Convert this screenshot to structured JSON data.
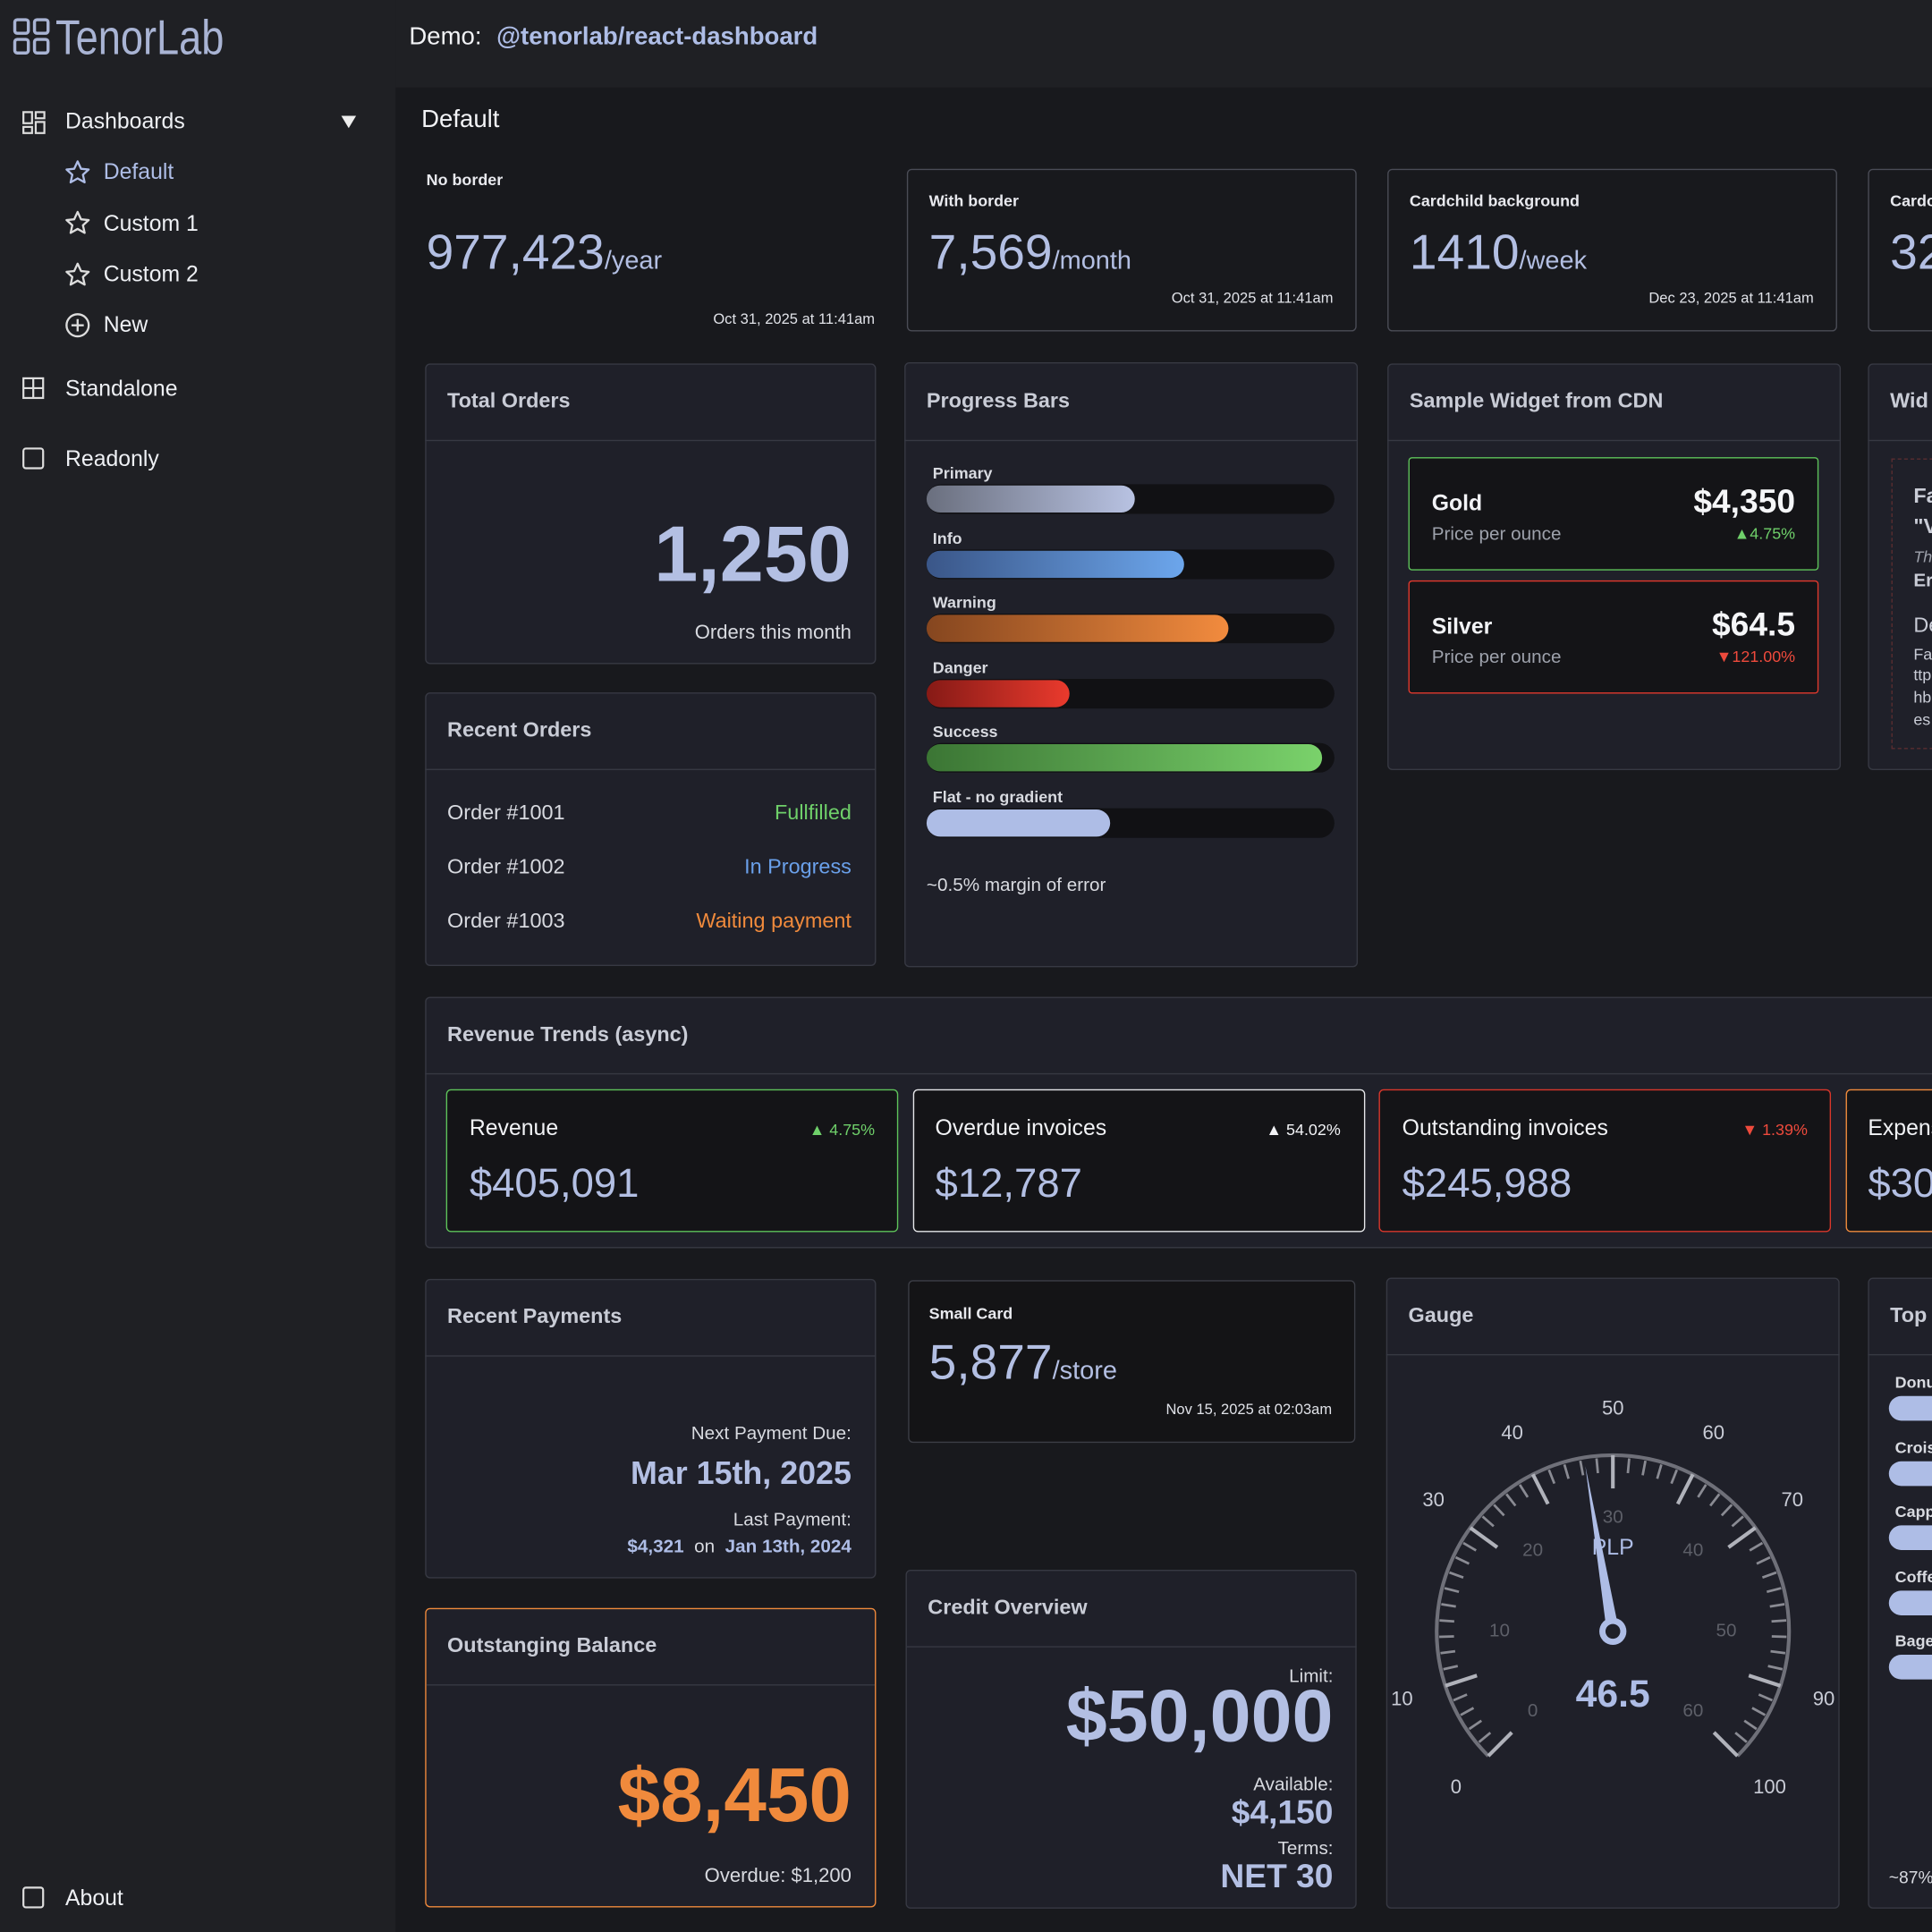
{
  "header": {
    "logo": "TenorLab",
    "demo_label": "Demo:",
    "demo_package": "@tenorlab/react-dashboard"
  },
  "sidebar": {
    "dashboards": "Dashboards",
    "items": [
      "Default",
      "Custom 1",
      "Custom 2",
      "New"
    ],
    "standalone": "Standalone",
    "readonly": "Readonly",
    "about": "About"
  },
  "page_title": "Default",
  "stat_cards": [
    {
      "label": "No border",
      "value": "977,423",
      "unit": "/year",
      "date": "Oct 31, 2025 at 11:41am"
    },
    {
      "label": "With border",
      "value": "7,569",
      "unit": "/month",
      "date": "Oct 31, 2025 at 11:41am"
    },
    {
      "label": "Cardchild background",
      "value": "1410",
      "unit": "/week",
      "date": "Dec 23, 2025 at 11:41am"
    },
    {
      "label": "Cardc",
      "value": "32"
    }
  ],
  "total_orders": {
    "title": "Total Orders",
    "value": "1,250",
    "caption": "Orders this month"
  },
  "progress": {
    "title": "Progress Bars",
    "note": "~0.5% margin of error",
    "bars": [
      {
        "label": "Primary",
        "value": 51,
        "colors": [
          "#6a6f7e",
          "#b8c2e2"
        ]
      },
      {
        "label": "Info",
        "value": 63,
        "colors": [
          "#3a5688",
          "#6ca6ec"
        ]
      },
      {
        "label": "Warning",
        "value": 74,
        "colors": [
          "#85461f",
          "#f28b3e"
        ]
      },
      {
        "label": "Danger",
        "value": 35,
        "colors": [
          "#861a16",
          "#ea3a2d"
        ]
      },
      {
        "label": "Success",
        "value": 97,
        "colors": [
          "#3b7534",
          "#7ad26b"
        ]
      },
      {
        "label": "Flat - no gradient",
        "value": 45,
        "colors": [
          "#aebde6"
        ]
      }
    ]
  },
  "cdn_widget": {
    "title": "Sample Widget from CDN",
    "items": [
      {
        "name": "Gold",
        "sub": "Price per ounce",
        "price": "$4,350",
        "change": "▲4.75%"
      },
      {
        "name": "Silver",
        "sub": "Price per ounce",
        "price": "$64.5",
        "change": "▼121.00%"
      }
    ]
  },
  "partial_widget": {
    "title": "Wid",
    "lines": [
      "Fa",
      "\"V",
      "Th",
      "Er",
      "De",
      "Fa",
      "ttp",
      "hb",
      "es"
    ]
  },
  "recent_orders": {
    "title": "Recent Orders",
    "rows": [
      [
        "Order #1001",
        "Fullfilled"
      ],
      [
        "Order #1002",
        "In Progress"
      ],
      [
        "Order #1003",
        "Waiting payment"
      ]
    ]
  },
  "revenue": {
    "title": "Revenue Trends (async)",
    "cards": [
      {
        "label": "Revenue",
        "value": "$405,091",
        "change": "▲ 4.75%"
      },
      {
        "label": "Overdue invoices",
        "value": "$12,787",
        "change": "▲ 54.02%"
      },
      {
        "label": "Outstanding invoices",
        "value": "$245,988",
        "change": "▼ 1.39%"
      },
      {
        "label": "Expens",
        "value": "$30"
      }
    ]
  },
  "recent_payments": {
    "title": "Recent Payments",
    "next_label": "Next Payment Due:",
    "next_date": "Mar 15th, 2025",
    "last_label": "Last Payment:",
    "last_amount": "$4,321",
    "on": "on",
    "last_date": "Jan 13th, 2024"
  },
  "small_card": {
    "label": "Small Card",
    "value": "5,877",
    "unit": "/store",
    "date": "Nov 15, 2025 at 02:03am"
  },
  "gauge": {
    "title": "Gauge",
    "value": 46.5,
    "unit_label": "PLP",
    "range": [
      0,
      100
    ],
    "ticks": [
      0,
      10,
      30,
      40,
      50,
      60,
      70,
      90,
      100
    ],
    "inner_range": [
      0,
      60
    ],
    "inner_ticks": [
      0,
      10,
      20,
      30,
      40,
      50,
      60
    ]
  },
  "top_card": {
    "title": "Top",
    "labels": [
      "Donu",
      "Crois",
      "Capp",
      "Coffe",
      "Bage"
    ],
    "note": "~87%"
  },
  "outstanding": {
    "title": "Outstanging Balance",
    "value": "$8,450",
    "caption": "Overdue: $1,200"
  },
  "credit": {
    "title": "Credit Overview",
    "limit_label": "Limit:",
    "limit": "$50,000",
    "available_label": "Available:",
    "available": "$4,150",
    "terms_label": "Terms:",
    "terms": "NET 30"
  }
}
